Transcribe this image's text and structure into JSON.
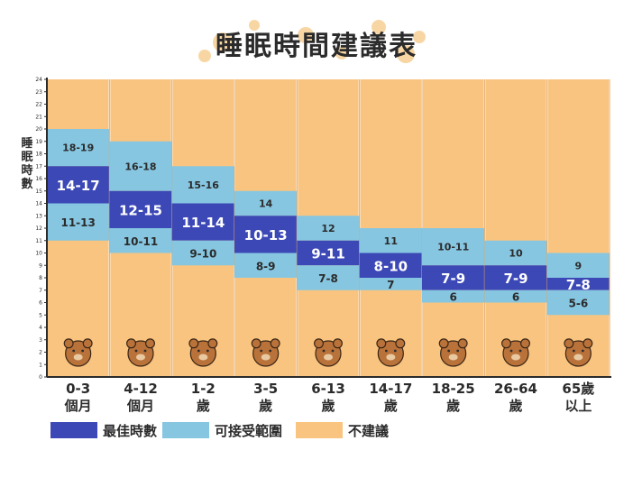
{
  "title": "睡眠時間建議表",
  "y_axis_label": "睡眠時數",
  "colors": {
    "optimal": "#3c48b6",
    "acceptable": "#86c6e1",
    "not_recommended": "#f9c47f",
    "axis": "#2b2b2b"
  },
  "legend": [
    {
      "label": "最佳時數",
      "color": "#3c48b6"
    },
    {
      "label": "可接受範圍",
      "color": "#86c6e1"
    },
    {
      "label": "不建議",
      "color": "#f9c47f"
    }
  ],
  "chart_data": {
    "type": "bar",
    "subtype": "stacked-range",
    "title": "睡眠時間建議表",
    "ylabel": "睡眠時數",
    "ylim": [
      0,
      24
    ],
    "yticks": [
      "0",
      "1",
      "2",
      "3",
      "4",
      "5",
      "6",
      "7",
      "8",
      "9",
      "10",
      "11",
      "12",
      "13",
      "14",
      "15",
      "16",
      "17",
      "18",
      "19",
      "20",
      "21",
      "22",
      "23",
      "24"
    ],
    "categories": [
      "0-3\n個月",
      "4-12\n個月",
      "1-2\n歲",
      "3-5\n歲",
      "6-13\n歲",
      "14-17\n歲",
      "18-25\n歲",
      "26-64\n歲",
      "65歲\n以上"
    ],
    "series": [
      {
        "name": "最佳時數",
        "ranges": [
          [
            14,
            17
          ],
          [
            12,
            15
          ],
          [
            11,
            14
          ],
          [
            10,
            13
          ],
          [
            9,
            11
          ],
          [
            8,
            10
          ],
          [
            7,
            9
          ],
          [
            7,
            9
          ],
          [
            7,
            8
          ]
        ],
        "labels": [
          "14-17",
          "12-15",
          "11-14",
          "10-13",
          "9-11",
          "8-10",
          "7-9",
          "7-9",
          "7-8"
        ]
      },
      {
        "name": "可接受範圍",
        "lower_ranges": [
          [
            11,
            13
          ],
          [
            10,
            11
          ],
          [
            9,
            10
          ],
          [
            8,
            9
          ],
          [
            7,
            8
          ],
          [
            7,
            7
          ],
          [
            6,
            6
          ],
          [
            6,
            6
          ],
          [
            5,
            6
          ]
        ],
        "lower_labels": [
          "11-13",
          "10-11",
          "9-10",
          "8-9",
          "7-8",
          "7",
          "6",
          "6",
          "5-6"
        ],
        "upper_ranges": [
          [
            18,
            19
          ],
          [
            16,
            18
          ],
          [
            15,
            16
          ],
          [
            14,
            14
          ],
          [
            12,
            12
          ],
          [
            11,
            11
          ],
          [
            10,
            11
          ],
          [
            10,
            10
          ],
          [
            9,
            9
          ]
        ],
        "upper_labels": [
          "18-19",
          "16-18",
          "15-16",
          "14",
          "12",
          "11",
          "10-11",
          "10",
          "9"
        ]
      },
      {
        "name": "不建議"
      }
    ]
  }
}
